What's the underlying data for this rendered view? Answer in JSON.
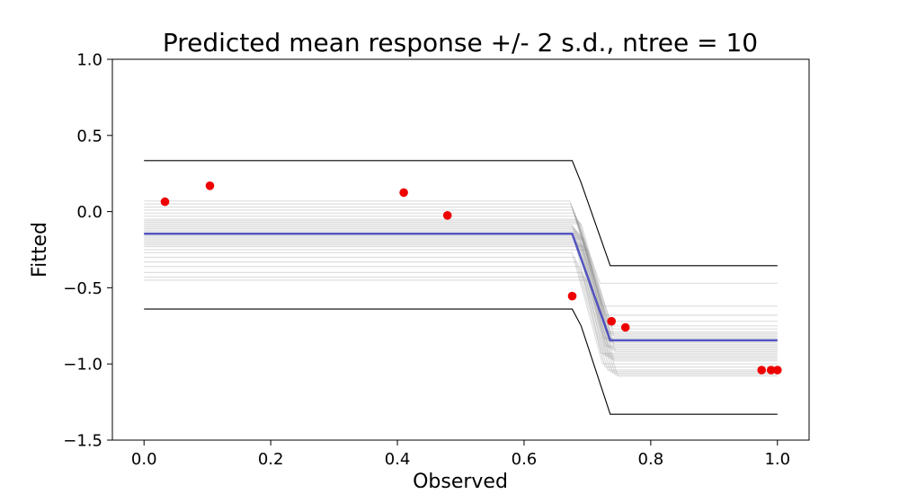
{
  "chart_data": {
    "type": "line",
    "title": "Predicted mean response +/- 2 s.d., ntree = 10",
    "xlabel": "Observed",
    "ylabel": "Fitted",
    "xlim": [
      -0.05,
      1.05
    ],
    "ylim": [
      -1.5,
      1.0
    ],
    "xticks": [
      0.0,
      0.2,
      0.4,
      0.6,
      0.8,
      1.0
    ],
    "xtick_labels": [
      "0.0",
      "0.2",
      "0.4",
      "0.6",
      "0.8",
      "1.0"
    ],
    "yticks": [
      -1.5,
      -1.0,
      -0.5,
      0.0,
      0.5,
      1.0
    ],
    "ytick_labels": [
      "−1.5",
      "−1.0",
      "−0.5",
      "0.0",
      "0.5",
      "1.0"
    ],
    "grid": false,
    "colors": {
      "mean": "#4444bb",
      "bounds": "#000000",
      "samples": "#888888",
      "points": "#ee0000"
    },
    "observed_points": {
      "x": [
        0.033,
        0.104,
        0.41,
        0.479,
        0.676,
        0.738,
        0.76,
        0.975,
        0.99,
        1.0
      ],
      "y": [
        0.065,
        0.17,
        0.125,
        -0.025,
        -0.555,
        -0.72,
        -0.76,
        -1.04,
        -1.04,
        -1.04
      ]
    },
    "step": {
      "x": [
        0.0,
        0.676,
        0.736,
        1.0
      ],
      "knees": [
        0.676,
        0.736
      ]
    },
    "mean": {
      "left": -0.145,
      "right": -0.845
    },
    "upper_bound": {
      "x": [
        0.0,
        0.676,
        0.69,
        0.736,
        1.0
      ],
      "y": [
        0.335,
        0.335,
        0.19,
        -0.355,
        -0.355
      ]
    },
    "lower_bound": {
      "x": [
        0.0,
        0.676,
        0.69,
        0.736,
        1.0
      ],
      "y": [
        -0.64,
        -0.64,
        -0.75,
        -1.33,
        -1.33
      ]
    },
    "samples": {
      "left": [
        0.07,
        0.05,
        0.03,
        0.01,
        -0.01,
        -0.03,
        -0.05,
        -0.06,
        -0.07,
        -0.08,
        -0.09,
        -0.1,
        -0.11,
        -0.12,
        -0.13,
        -0.14,
        -0.15,
        -0.16,
        -0.17,
        -0.18,
        -0.19,
        -0.2,
        -0.21,
        -0.22,
        -0.23,
        -0.25,
        -0.27,
        -0.3,
        -0.33,
        -0.36,
        -0.4,
        -0.43,
        -0.45
      ],
      "right": [
        -0.47,
        -0.62,
        -0.68,
        -0.72,
        -0.75,
        -0.77,
        -0.79,
        -0.8,
        -0.81,
        -0.82,
        -0.83,
        -0.84,
        -0.85,
        -0.86,
        -0.87,
        -0.88,
        -0.89,
        -0.9,
        -0.91,
        -0.92,
        -0.93,
        -0.94,
        -0.95,
        -0.96,
        -0.97,
        -0.98,
        -1.0,
        -1.02,
        -1.04,
        -1.05,
        -1.06,
        -1.07,
        -1.08
      ],
      "knee_left": [
        0.672,
        0.674,
        0.676,
        0.678,
        0.68,
        0.682,
        0.684,
        0.686,
        0.688,
        0.69,
        0.676,
        0.678,
        0.68,
        0.682,
        0.684,
        0.686,
        0.688,
        0.69,
        0.692,
        0.694,
        0.68,
        0.684,
        0.688,
        0.692,
        0.696,
        0.7,
        0.676,
        0.68,
        0.684,
        0.688,
        0.692,
        0.696,
        0.7
      ],
      "knee_right": [
        0.72,
        0.724,
        0.728,
        0.732,
        0.736,
        0.74,
        0.73,
        0.734,
        0.738,
        0.742,
        0.726,
        0.73,
        0.734,
        0.738,
        0.742,
        0.728,
        0.732,
        0.736,
        0.74,
        0.744,
        0.722,
        0.726,
        0.73,
        0.734,
        0.738,
        0.742,
        0.724,
        0.728,
        0.732,
        0.736,
        0.74,
        0.744,
        0.748
      ]
    }
  }
}
